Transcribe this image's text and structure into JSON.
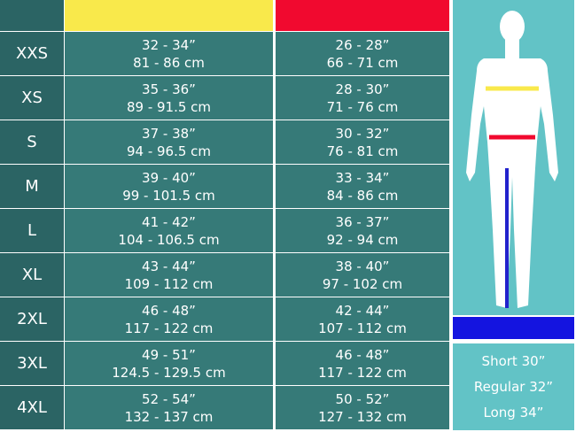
{
  "table": {
    "rows": [
      {
        "size": "XXS",
        "chest": [
          "32 - 34”",
          "81 - 86 cm"
        ],
        "waist": [
          "26 - 28”",
          "66 - 71 cm"
        ]
      },
      {
        "size": "XS",
        "chest": [
          "35 - 36”",
          "89 - 91.5 cm"
        ],
        "waist": [
          "28 - 30”",
          "71 - 76 cm"
        ]
      },
      {
        "size": "S",
        "chest": [
          "37 - 38”",
          "94 - 96.5 cm"
        ],
        "waist": [
          "30 - 32”",
          "76 - 81 cm"
        ]
      },
      {
        "size": "M",
        "chest": [
          "39 - 40”",
          "99 - 101.5 cm"
        ],
        "waist": [
          "33 - 34”",
          "84 - 86 cm"
        ]
      },
      {
        "size": "L",
        "chest": [
          "41 - 42”",
          "104 - 106.5 cm"
        ],
        "waist": [
          "36 - 37”",
          "92 - 94 cm"
        ]
      },
      {
        "size": "XL",
        "chest": [
          "43 - 44”",
          "109 - 112 cm"
        ],
        "waist": [
          "38 - 40”",
          "97 - 102 cm"
        ]
      },
      {
        "size": "2XL",
        "chest": [
          "46 - 48”",
          "117 - 122 cm"
        ],
        "waist": [
          "42 - 44”",
          "107 - 112 cm"
        ]
      },
      {
        "size": "3XL",
        "chest": [
          "49 - 51”",
          "124.5 - 129.5 cm"
        ],
        "waist": [
          "46 - 48”",
          "117 - 122 cm"
        ]
      },
      {
        "size": "4XL",
        "chest": [
          "52 - 54”",
          "132 - 137 cm"
        ],
        "waist": [
          "50 - 52”",
          "127 - 132 cm"
        ]
      }
    ]
  },
  "inseam": [
    "Short 30”",
    "Regular 32”",
    "Long 34”"
  ]
}
